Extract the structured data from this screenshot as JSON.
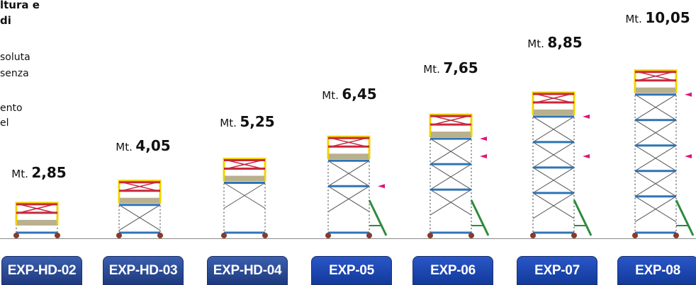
{
  "intro": {
    "heading_lines": [
      "ltura e",
      "di"
    ],
    "text_lines": [
      "soluta",
      "senza",
      "ento",
      "el"
    ]
  },
  "height_prefix": "Mt.",
  "towers": [
    {
      "model": "EXP-HD-02",
      "height": "2,85",
      "height_m": 2.85,
      "variant": "hd",
      "side_brace": false,
      "markers": 0
    },
    {
      "model": "EXP-HD-03",
      "height": "4,05",
      "height_m": 4.05,
      "variant": "hd",
      "side_brace": false,
      "markers": 0
    },
    {
      "model": "EXP-HD-04",
      "height": "5,25",
      "height_m": 5.25,
      "variant": "hd",
      "side_brace": false,
      "markers": 0
    },
    {
      "model": "EXP-05",
      "height": "6,45",
      "height_m": 6.45,
      "variant": "std",
      "side_brace": true,
      "markers": 1
    },
    {
      "model": "EXP-06",
      "height": "7,65",
      "height_m": 7.65,
      "variant": "std",
      "side_brace": true,
      "markers": 2
    },
    {
      "model": "EXP-07",
      "height": "8,85",
      "height_m": 8.85,
      "variant": "std",
      "side_brace": true,
      "markers": 2
    },
    {
      "model": "EXP-08",
      "height": "10,05",
      "height_m": 10.05,
      "variant": "std",
      "side_brace": true,
      "markers": 2
    }
  ],
  "colors": {
    "frame": "#9a9a9a",
    "rung": "#2f74b5",
    "cross": "#555555",
    "guardrail": "#c8283c",
    "upright_top": "#f2d400",
    "deck": "#b8b08e",
    "outrigger": "#2e8b3e",
    "marker": "#e0157a",
    "wheel": "#8a3a2a"
  }
}
